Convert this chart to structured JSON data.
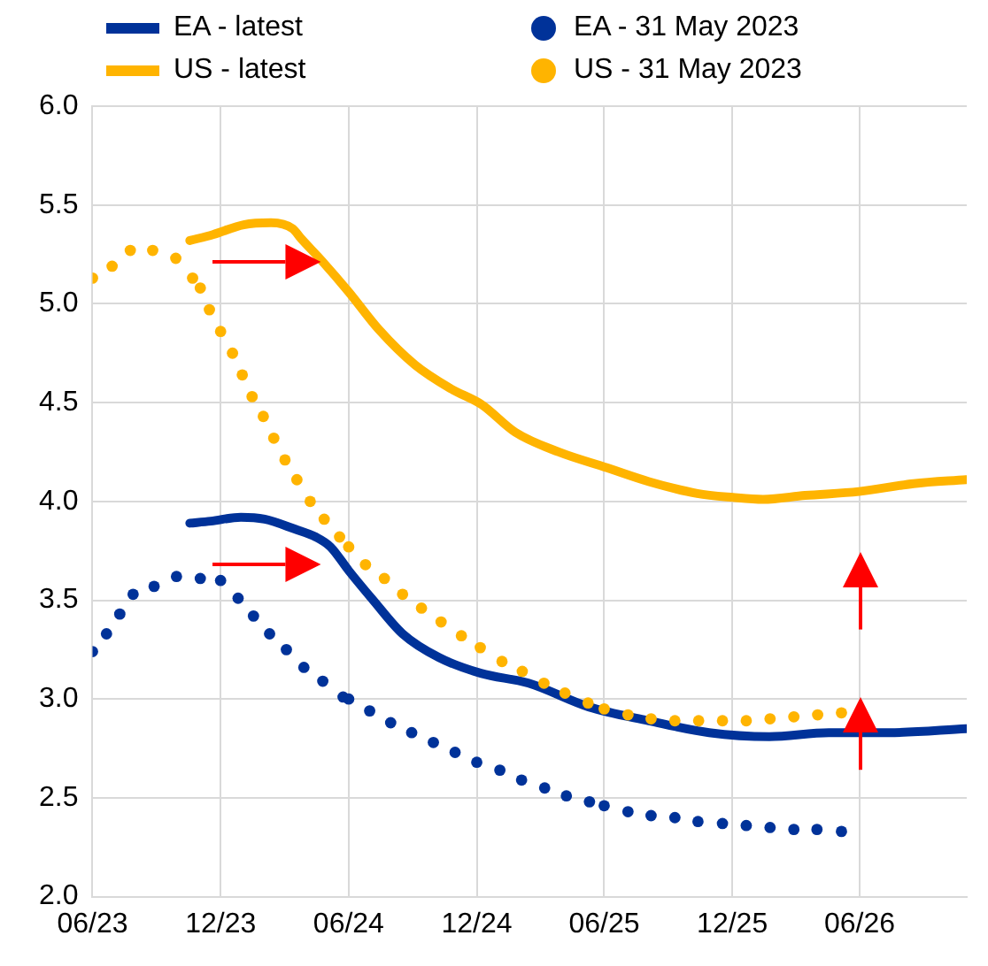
{
  "chart_data": {
    "type": "line",
    "legend": "top",
    "grid": true,
    "ylim": [
      2,
      6
    ],
    "yticks": [
      {
        "value": 2,
        "label": "2.0"
      },
      {
        "value": 2.5,
        "label": "2.5"
      },
      {
        "value": 3,
        "label": "3.0"
      },
      {
        "value": 3.5,
        "label": "3.5"
      },
      {
        "value": 4,
        "label": "4.0"
      },
      {
        "value": 4.5,
        "label": "4.5"
      },
      {
        "value": 5,
        "label": "5.0"
      },
      {
        "value": 5.5,
        "label": "5.5"
      },
      {
        "value": 6,
        "label": "6.0"
      }
    ],
    "xlim": [
      "2023-06",
      "2026-11"
    ],
    "xticks": [
      {
        "value": "2023-06",
        "label": "06/23"
      },
      {
        "value": "2023-12",
        "label": "12/23"
      },
      {
        "value": "2024-06",
        "label": "06/24"
      },
      {
        "value": "2024-12",
        "label": "12/24"
      },
      {
        "value": "2025-06",
        "label": "06/25"
      },
      {
        "value": "2025-12",
        "label": "12/25"
      },
      {
        "value": "2026-06",
        "label": "06/26"
      }
    ],
    "series": [
      {
        "name": "EA - latest",
        "type": "line",
        "line_style": "solid",
        "marker": "none",
        "color": "#003299",
        "x": [
          "2023-10-18",
          "2023-11-17",
          "2023-12-30",
          "2024-02-02",
          "2024-03-16",
          "2024-04-15",
          "2024-05-06",
          "2024-06-01",
          "2024-07-06",
          "2024-08-17",
          "2024-10-08",
          "2024-12-07",
          "2025-02-13",
          "2025-05-10",
          "2025-08-04",
          "2025-10-29",
          "2026-01-23",
          "2026-04-18",
          "2026-07-13",
          "2026-10-31"
        ],
        "values": [
          3.89,
          3.9,
          3.92,
          3.91,
          3.86,
          3.82,
          3.77,
          3.65,
          3.5,
          3.33,
          3.21,
          3.13,
          3.08,
          2.96,
          2.89,
          2.83,
          2.81,
          2.83,
          2.83,
          2.85
        ]
      },
      {
        "name": "EA - 31 May 2023",
        "type": "scatter",
        "marker": "circle",
        "color": "#003299",
        "x": [
          "2023-06-01",
          "2023-06-21",
          "2023-07-10",
          "2023-07-29",
          "2023-08-28",
          "2023-09-29",
          "2023-11-02",
          "2023-12-01",
          "2023-12-26",
          "2024-01-17",
          "2024-02-09",
          "2024-03-04",
          "2024-03-29",
          "2024-04-25",
          "2024-05-24",
          "2024-06-01",
          "2024-07-01",
          "2024-07-31",
          "2024-08-30",
          "2024-09-30",
          "2024-10-31",
          "2024-12-01",
          "2025-01-03",
          "2025-02-03",
          "2025-03-08",
          "2025-04-08",
          "2025-05-11",
          "2025-06-01",
          "2025-07-05",
          "2025-08-07",
          "2025-09-10",
          "2025-10-13",
          "2025-11-17",
          "2025-12-21",
          "2026-01-24",
          "2026-02-27",
          "2026-04-01",
          "2026-05-06"
        ],
        "values": [
          3.24,
          3.33,
          3.43,
          3.53,
          3.57,
          3.62,
          3.61,
          3.6,
          3.51,
          3.42,
          3.33,
          3.25,
          3.16,
          3.09,
          3.01,
          3.0,
          2.94,
          2.88,
          2.83,
          2.78,
          2.73,
          2.68,
          2.64,
          2.59,
          2.55,
          2.51,
          2.48,
          2.46,
          2.43,
          2.41,
          2.4,
          2.38,
          2.37,
          2.36,
          2.35,
          2.34,
          2.34,
          2.33
        ]
      },
      {
        "name": "US - latest",
        "type": "line",
        "line_style": "solid",
        "marker": "none",
        "color": "#ffb400",
        "x": [
          "2023-10-18",
          "2023-11-20",
          "2024-01-03",
          "2024-02-11",
          "2024-03-13",
          "2024-03-25",
          "2024-04-23",
          "2024-06-01",
          "2024-07-14",
          "2024-09-04",
          "2024-10-25",
          "2024-12-08",
          "2025-01-25",
          "2025-03-28",
          "2025-06-05",
          "2025-08-04",
          "2025-10-12",
          "2025-12-02",
          "2026-01-14",
          "2026-03-15",
          "2026-05-31",
          "2026-08-17",
          "2026-10-31"
        ],
        "values": [
          5.32,
          5.35,
          5.4,
          5.41,
          5.38,
          5.33,
          5.22,
          5.06,
          4.87,
          4.69,
          4.57,
          4.49,
          4.35,
          4.25,
          4.17,
          4.1,
          4.04,
          4.02,
          4.01,
          4.03,
          4.05,
          4.09,
          4.11
        ]
      },
      {
        "name": "US - 31 May 2023",
        "type": "scatter",
        "marker": "circle",
        "color": "#ffb400",
        "x": [
          "2023-06-01",
          "2023-06-29",
          "2023-07-25",
          "2023-08-26",
          "2023-09-28",
          "2023-10-22",
          "2023-11-02",
          "2023-11-15",
          "2023-12-01",
          "2023-12-18",
          "2024-01-01",
          "2024-01-15",
          "2024-01-31",
          "2024-02-15",
          "2024-03-02",
          "2024-03-19",
          "2024-04-07",
          "2024-04-27",
          "2024-05-19",
          "2024-06-01",
          "2024-06-25",
          "2024-07-22",
          "2024-08-17",
          "2024-09-13",
          "2024-10-11",
          "2024-11-09",
          "2024-12-06",
          "2025-01-06",
          "2025-02-04",
          "2025-03-07",
          "2025-04-06",
          "2025-05-09",
          "2025-06-01",
          "2025-07-05",
          "2025-08-07",
          "2025-09-10",
          "2025-10-14",
          "2025-11-17",
          "2025-12-21",
          "2026-01-24",
          "2026-02-27",
          "2026-04-02",
          "2026-05-06"
        ],
        "values": [
          5.13,
          5.19,
          5.27,
          5.27,
          5.23,
          5.13,
          5.08,
          4.97,
          4.86,
          4.75,
          4.64,
          4.53,
          4.43,
          4.32,
          4.21,
          4.11,
          4.0,
          3.91,
          3.82,
          3.77,
          3.68,
          3.61,
          3.53,
          3.46,
          3.39,
          3.32,
          3.26,
          3.19,
          3.14,
          3.08,
          3.03,
          2.98,
          2.95,
          2.92,
          2.9,
          2.89,
          2.89,
          2.89,
          2.89,
          2.9,
          2.91,
          2.92,
          2.93
        ]
      }
    ]
  }
}
